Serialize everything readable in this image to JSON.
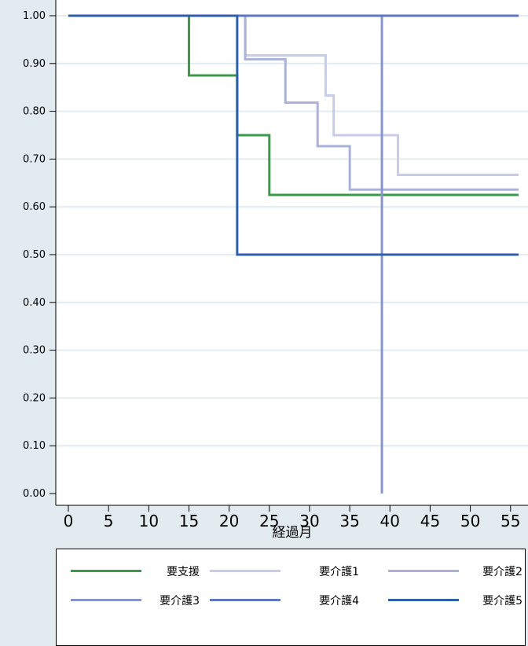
{
  "chart_data": {
    "type": "line",
    "step": true,
    "xlabel": "経過月",
    "ylabel": "",
    "title": "",
    "xlim": [
      0,
      56
    ],
    "ylim": [
      0,
      1
    ],
    "xticks": [
      0,
      5,
      10,
      15,
      20,
      25,
      30,
      35,
      40,
      45,
      50,
      55
    ],
    "yticks": [
      "0.00",
      "0.10",
      "0.20",
      "0.30",
      "0.40",
      "0.50",
      "0.60",
      "0.70",
      "0.80",
      "0.90",
      "1.00"
    ],
    "grid": "horizontal",
    "legend_position": "bottom",
    "series": [
      {
        "name": "要支援",
        "color": "#3a9a47",
        "x": [
          0,
          15,
          21,
          25,
          56
        ],
        "y": [
          1.0,
          0.875,
          0.75,
          0.625,
          0.625
        ]
      },
      {
        "name": "要介護1",
        "color": "#c7cde8",
        "x": [
          0,
          22,
          23,
          32,
          33,
          41,
          56
        ],
        "y": [
          1.0,
          0.917,
          0.917,
          0.833,
          0.75,
          0.667,
          0.667
        ]
      },
      {
        "name": "要介護2",
        "color": "#aab2da",
        "x": [
          0,
          22,
          27,
          31,
          35,
          56
        ],
        "y": [
          1.0,
          0.909,
          0.818,
          0.727,
          0.636,
          0.636
        ]
      },
      {
        "name": "要介護3",
        "color": "#8894cc",
        "x": [
          0,
          39,
          39
        ],
        "y": [
          1.0,
          1.0,
          0.0
        ]
      },
      {
        "name": "要介護4",
        "color": "#5f76c0",
        "x": [
          0,
          56
        ],
        "y": [
          1.0,
          1.0
        ]
      },
      {
        "name": "要介護5",
        "color": "#2f5fa8",
        "x": [
          0,
          21,
          56
        ],
        "y": [
          1.0,
          0.5,
          0.5
        ]
      }
    ]
  }
}
